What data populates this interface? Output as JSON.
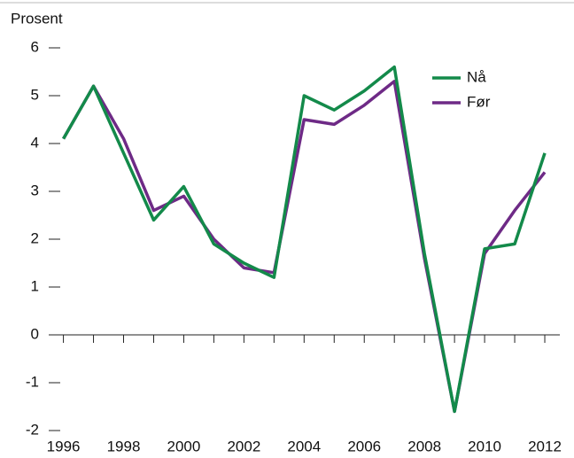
{
  "chart_data": {
    "type": "line",
    "y_label": "Prosent",
    "x": [
      1996,
      1997,
      1998,
      1999,
      2000,
      2001,
      2002,
      2003,
      2004,
      2005,
      2006,
      2007,
      2008,
      2009,
      2010,
      2011,
      2012
    ],
    "series": [
      {
        "name": "Nå",
        "color": "#138a4a",
        "values": [
          4.1,
          5.2,
          3.8,
          2.4,
          3.1,
          1.9,
          1.5,
          1.2,
          5.0,
          4.7,
          5.1,
          5.6,
          1.7,
          -1.6,
          1.8,
          1.9,
          3.8
        ]
      },
      {
        "name": "Før",
        "color": "#6e2a86",
        "values": [
          4.1,
          5.2,
          4.1,
          2.6,
          2.9,
          2.0,
          1.4,
          1.3,
          4.5,
          4.4,
          4.8,
          5.3,
          1.6,
          -1.6,
          1.7,
          2.6,
          3.4
        ]
      }
    ],
    "xlim": [
      1995.6,
      2012.5
    ],
    "xticks": [
      1996,
      1998,
      2000,
      2002,
      2004,
      2006,
      2008,
      2010,
      2012
    ],
    "xminorticks": [
      1997,
      1999,
      2001,
      2003,
      2005,
      2007,
      2009,
      2011
    ],
    "ylim": [
      -2,
      6
    ],
    "yticks": [
      -2,
      -1,
      0,
      1,
      2,
      3,
      4,
      5,
      6
    ],
    "legend": "upper right"
  }
}
